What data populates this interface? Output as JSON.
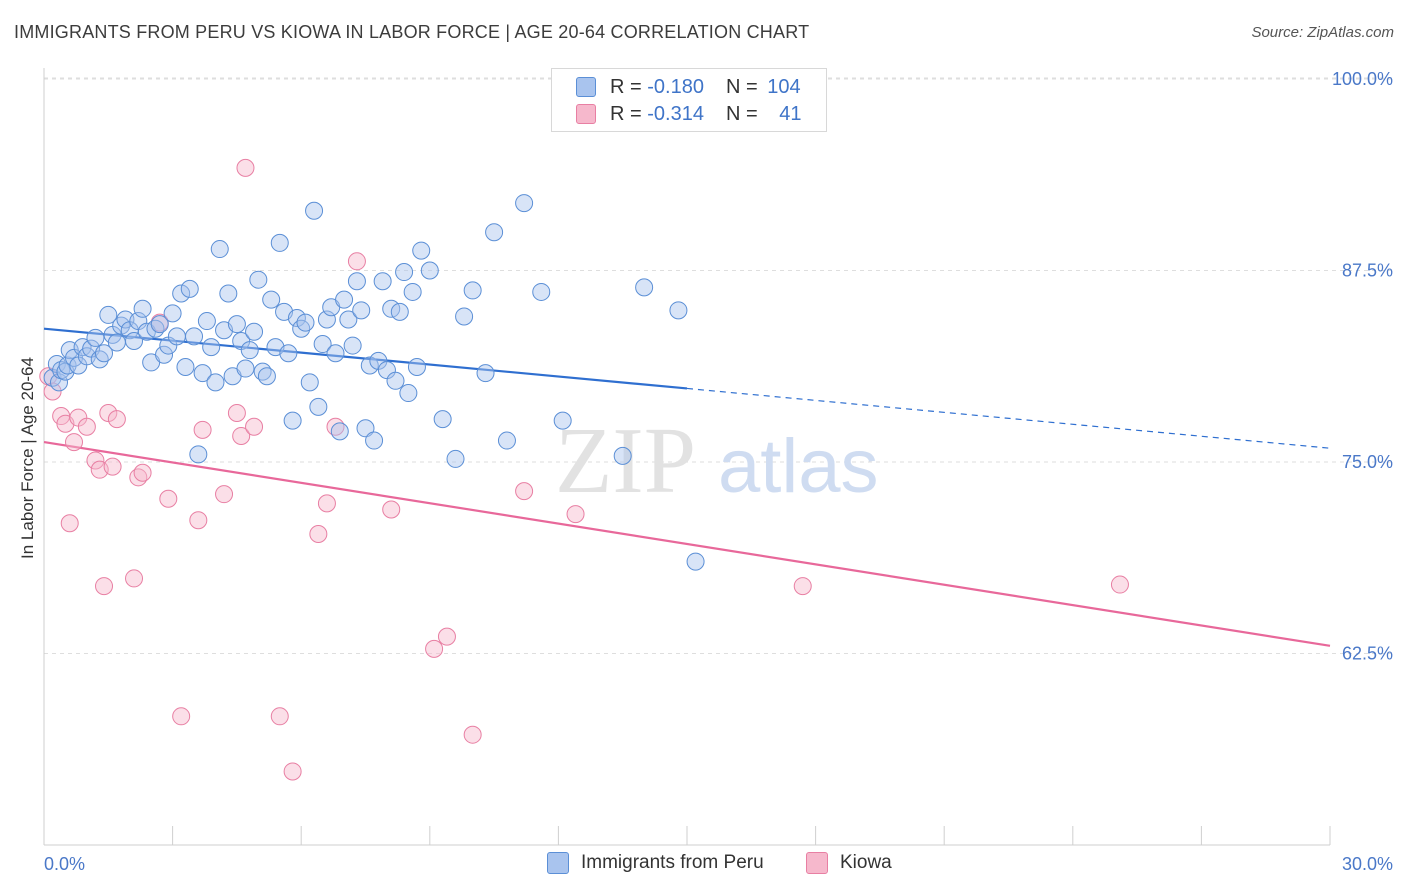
{
  "header": {
    "title": "IMMIGRANTS FROM PERU VS KIOWA IN LABOR FORCE | AGE 20-64 CORRELATION CHART",
    "source": "Source: ZipAtlas.com"
  },
  "watermark": {
    "zip": "ZIP",
    "atlas": "atlas"
  },
  "legend": {
    "rows": [
      {
        "r_label": "R = ",
        "r_value": "-0.180",
        "n_label": "N = ",
        "n_value": "104",
        "color": "#a9c4ee",
        "border": "#5b8fd6"
      },
      {
        "r_label": "R = ",
        "r_value": "-0.314",
        "n_label": "N = ",
        "n_value": "41",
        "color": "#f6b8cc",
        "border": "#e87fa3"
      }
    ],
    "bottom": [
      "Immigrants from Peru",
      "Kiowa"
    ]
  },
  "colors": {
    "peru_fill": "#a9c4ee",
    "peru_stroke": "#5b8fd6",
    "peru_line": "#2f6fd0",
    "kiowa_fill": "#f6b8cc",
    "kiowa_stroke": "#e87fa3",
    "kiowa_line": "#e8689a",
    "tick_text": "#4a78c8",
    "grid": "#dedede"
  },
  "chart_data": {
    "type": "scatter",
    "title": "IMMIGRANTS FROM PERU VS KIOWA IN LABOR FORCE | AGE 20-64 CORRELATION CHART",
    "xlabel": "",
    "ylabel": "In Labor Force | Age 20-64",
    "x_tick_labels": [
      "0.0%",
      "30.0%"
    ],
    "y_tick_labels": [
      "100.0%",
      "87.5%",
      "75.0%",
      "62.5%"
    ],
    "xlim": [
      0,
      30
    ],
    "ylim": [
      50,
      100
    ],
    "grid": true,
    "legend_position": "top-center",
    "series": [
      {
        "name": "Immigrants from Peru",
        "trend": {
          "x0": 0,
          "y0": 83.7,
          "x1": 15,
          "y1": 79.8,
          "dashed_to_x": 30,
          "dashed_to_y": 75.9
        },
        "points": [
          [
            0.2,
            80.5
          ],
          [
            0.3,
            81.4
          ],
          [
            0.35,
            80.2
          ],
          [
            0.4,
            81.0
          ],
          [
            0.5,
            80.9
          ],
          [
            0.55,
            81.3
          ],
          [
            0.6,
            82.3
          ],
          [
            0.7,
            81.8
          ],
          [
            0.8,
            81.3
          ],
          [
            0.9,
            82.5
          ],
          [
            1.0,
            81.9
          ],
          [
            1.1,
            82.4
          ],
          [
            1.2,
            83.1
          ],
          [
            1.3,
            81.7
          ],
          [
            1.4,
            82.1
          ],
          [
            1.5,
            84.6
          ],
          [
            1.6,
            83.3
          ],
          [
            1.7,
            82.8
          ],
          [
            1.8,
            83.9
          ],
          [
            1.9,
            84.3
          ],
          [
            2.0,
            83.6
          ],
          [
            2.1,
            82.9
          ],
          [
            2.2,
            84.2
          ],
          [
            2.3,
            85.0
          ],
          [
            2.4,
            83.5
          ],
          [
            2.5,
            81.5
          ],
          [
            2.6,
            83.7
          ],
          [
            2.7,
            84.0
          ],
          [
            2.8,
            82.0
          ],
          [
            2.9,
            82.6
          ],
          [
            3.0,
            84.7
          ],
          [
            3.1,
            83.2
          ],
          [
            3.2,
            86.0
          ],
          [
            3.3,
            81.2
          ],
          [
            3.4,
            86.3
          ],
          [
            3.5,
            83.2
          ],
          [
            3.6,
            75.5
          ],
          [
            3.7,
            80.8
          ],
          [
            3.8,
            84.2
          ],
          [
            3.9,
            82.5
          ],
          [
            4.0,
            80.2
          ],
          [
            4.1,
            88.9
          ],
          [
            4.2,
            83.6
          ],
          [
            4.3,
            86.0
          ],
          [
            4.4,
            80.6
          ],
          [
            4.5,
            84.0
          ],
          [
            4.6,
            82.9
          ],
          [
            4.7,
            81.1
          ],
          [
            4.8,
            82.3
          ],
          [
            4.9,
            83.5
          ],
          [
            5.0,
            86.9
          ],
          [
            5.1,
            80.9
          ],
          [
            5.2,
            80.6
          ],
          [
            5.3,
            85.6
          ],
          [
            5.4,
            82.5
          ],
          [
            5.5,
            89.3
          ],
          [
            5.6,
            84.8
          ],
          [
            5.7,
            82.1
          ],
          [
            5.8,
            77.7
          ],
          [
            5.9,
            84.4
          ],
          [
            6.0,
            83.7
          ],
          [
            6.1,
            84.1
          ],
          [
            6.2,
            80.2
          ],
          [
            6.3,
            91.4
          ],
          [
            6.4,
            78.6
          ],
          [
            6.5,
            82.7
          ],
          [
            6.6,
            84.3
          ],
          [
            6.7,
            85.1
          ],
          [
            6.8,
            82.1
          ],
          [
            6.9,
            77.0
          ],
          [
            7.0,
            85.6
          ],
          [
            7.1,
            84.3
          ],
          [
            7.2,
            82.6
          ],
          [
            7.3,
            86.8
          ],
          [
            7.4,
            84.9
          ],
          [
            7.5,
            77.2
          ],
          [
            7.6,
            81.3
          ],
          [
            7.7,
            76.4
          ],
          [
            7.8,
            81.6
          ],
          [
            7.9,
            86.8
          ],
          [
            8.0,
            81.0
          ],
          [
            8.1,
            85.0
          ],
          [
            8.2,
            80.3
          ],
          [
            8.3,
            84.8
          ],
          [
            8.4,
            87.4
          ],
          [
            8.5,
            79.5
          ],
          [
            8.6,
            86.1
          ],
          [
            8.7,
            81.2
          ],
          [
            8.8,
            88.8
          ],
          [
            9.0,
            87.5
          ],
          [
            9.3,
            77.8
          ],
          [
            9.6,
            75.2
          ],
          [
            9.8,
            84.5
          ],
          [
            10.0,
            86.2
          ],
          [
            10.3,
            80.8
          ],
          [
            10.5,
            90.0
          ],
          [
            10.8,
            76.4
          ],
          [
            11.2,
            91.9
          ],
          [
            11.6,
            86.1
          ],
          [
            12.1,
            77.7
          ],
          [
            13.5,
            75.4
          ],
          [
            14.0,
            86.4
          ],
          [
            14.8,
            84.9
          ],
          [
            15.2,
            68.5
          ]
        ]
      },
      {
        "name": "Kiowa",
        "trend": {
          "x0": 0,
          "y0": 76.3,
          "x1": 30,
          "y1": 63.0
        },
        "points": [
          [
            0.1,
            80.6
          ],
          [
            0.2,
            79.6
          ],
          [
            0.4,
            78.0
          ],
          [
            0.5,
            77.5
          ],
          [
            0.6,
            71.0
          ],
          [
            0.7,
            76.3
          ],
          [
            0.8,
            77.9
          ],
          [
            1.0,
            77.3
          ],
          [
            1.2,
            75.1
          ],
          [
            1.3,
            74.5
          ],
          [
            1.4,
            66.9
          ],
          [
            1.5,
            78.2
          ],
          [
            1.6,
            74.7
          ],
          [
            1.7,
            77.8
          ],
          [
            2.1,
            67.4
          ],
          [
            2.2,
            74.0
          ],
          [
            2.3,
            74.3
          ],
          [
            2.7,
            84.1
          ],
          [
            2.9,
            72.6
          ],
          [
            3.2,
            58.4
          ],
          [
            3.6,
            71.2
          ],
          [
            3.7,
            77.1
          ],
          [
            4.2,
            72.9
          ],
          [
            4.5,
            78.2
          ],
          [
            4.6,
            76.7
          ],
          [
            4.7,
            94.2
          ],
          [
            4.9,
            77.3
          ],
          [
            5.5,
            58.4
          ],
          [
            5.8,
            54.8
          ],
          [
            6.4,
            70.3
          ],
          [
            6.6,
            72.3
          ],
          [
            6.8,
            77.3
          ],
          [
            7.3,
            88.1
          ],
          [
            8.1,
            71.9
          ],
          [
            9.1,
            62.8
          ],
          [
            9.4,
            63.6
          ],
          [
            10.0,
            57.2
          ],
          [
            11.2,
            73.1
          ],
          [
            12.4,
            71.6
          ],
          [
            17.7,
            66.9
          ],
          [
            25.1,
            67.0
          ]
        ]
      }
    ]
  }
}
